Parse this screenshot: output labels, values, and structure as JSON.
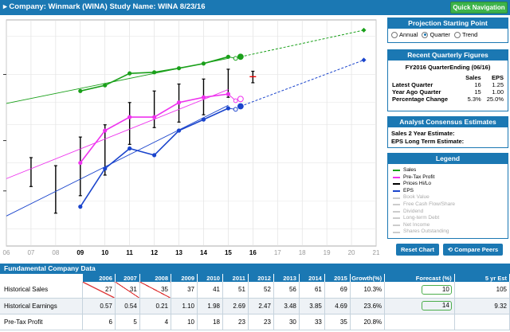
{
  "header": {
    "title": "▸ Company: Winmark (WINA)   Study Name: WINA 8/23/16",
    "quick_nav_label": "Quick Navigation"
  },
  "projection": {
    "title": "Projection Starting Point",
    "options": [
      "Annual",
      "Quarter",
      "Trend"
    ],
    "selected": "Quarter"
  },
  "recent_quarterly": {
    "title": "Recent Quarterly Figures",
    "subtitle": "FY2016 QuarterEnding (06/16)",
    "col_sales": "Sales",
    "col_eps": "EPS",
    "rows": [
      {
        "label": "Latest Quarter",
        "sales": "16",
        "eps": "1.25"
      },
      {
        "label": "Year Ago Quarter",
        "sales": "15",
        "eps": "1.00"
      },
      {
        "label": "Percentage Change",
        "sales": "5.3%",
        "eps": "25.0%"
      }
    ]
  },
  "analyst": {
    "title": "Analyst Consensus Estimates",
    "line1": "Sales 2 Year Estimate:",
    "line2": "EPS Long Term Estimate:"
  },
  "legend": {
    "title": "Legend",
    "items": [
      {
        "label": "Sales",
        "color": "#1aa01a",
        "active": true
      },
      {
        "label": "Pre-Tax Profit",
        "color": "#ee33ee",
        "active": true
      },
      {
        "label": "Prices Hi/Lo",
        "color": "#000000",
        "active": true
      },
      {
        "label": "EPS",
        "color": "#1a44cc",
        "active": true
      },
      {
        "label": "Book Value",
        "color": "#cccccc",
        "active": false
      },
      {
        "label": "Free Cash Flow/Share",
        "color": "#cccccc",
        "active": false
      },
      {
        "label": "Dividend",
        "color": "#cccccc",
        "active": false
      },
      {
        "label": "Long-term Debt",
        "color": "#cccccc",
        "active": false
      },
      {
        "label": "Net Income",
        "color": "#cccccc",
        "active": false
      },
      {
        "label": "Shares Outstanding",
        "color": "#cccccc",
        "active": false
      }
    ]
  },
  "buttons": {
    "reset": "Reset Chart",
    "compare": "⟲ Compare Peers"
  },
  "fundamental": {
    "title": "Fundamental Company Data",
    "headers": [
      "",
      "2006",
      "2007",
      "2008",
      "2009",
      "2010",
      "2011",
      "2012",
      "2013",
      "2014",
      "2015",
      "Growth(%)",
      "Forecast (%)",
      "5 yr Est"
    ],
    "rows": [
      {
        "label": "Historical Sales",
        "values": [
          "27",
          "31",
          "35",
          "37",
          "41",
          "51",
          "52",
          "56",
          "61",
          "69"
        ],
        "growth": "10.3%",
        "forecast": "10",
        "est": "105"
      },
      {
        "label": "Historical Earnings",
        "values": [
          "0.57",
          "0.54",
          "0.21",
          "1.10",
          "1.98",
          "2.69",
          "2.47",
          "3.48",
          "3.85",
          "4.69"
        ],
        "growth": "23.6%",
        "forecast": "14",
        "est": "9.32"
      },
      {
        "label": "Pre-Tax Profit",
        "values": [
          "6",
          "5",
          "4",
          "10",
          "18",
          "23",
          "23",
          "30",
          "33",
          "35"
        ],
        "growth": "20.8%",
        "forecast": "",
        "est": ""
      }
    ],
    "struck_columns": [
      0,
      1,
      2
    ]
  },
  "chart_data": {
    "type": "line",
    "x_ticks": [
      "06",
      "07",
      "08",
      "09",
      "10",
      "11",
      "12",
      "13",
      "14",
      "15",
      "16",
      "17",
      "18",
      "19",
      "20",
      "21"
    ],
    "x_range": [
      2006,
      2021
    ],
    "log_scale": true,
    "grid": true,
    "series": [
      {
        "name": "Sales",
        "color": "#1aa01a",
        "x": [
          2009,
          2010,
          2011,
          2012,
          2013,
          2014,
          2015
        ],
        "y": [
          37,
          41,
          51,
          52,
          56,
          61,
          69
        ],
        "trend": {
          "x": [
            2006,
            2015
          ],
          "y": [
            29.5,
            67
          ]
        },
        "projection": {
          "x": [
            2015.5,
            2020.5
          ],
          "y": [
            69,
            112
          ]
        },
        "recent": [
          {
            "x": 2015.3,
            "y": 67
          },
          {
            "x": 2015.5,
            "y": 69
          }
        ]
      },
      {
        "name": "Pre-Tax Profit",
        "color": "#ee33ee",
        "x": [
          2009,
          2010,
          2011,
          2012,
          2013,
          2014,
          2015
        ],
        "y": [
          10,
          18,
          23,
          23,
          30,
          33,
          35
        ],
        "trend": {
          "x": [
            2006,
            2015
          ],
          "y": [
            7.5,
            38
          ]
        },
        "recent": [
          {
            "x": 2015.3,
            "y": 31
          },
          {
            "x": 2015.5,
            "y": 32
          }
        ]
      },
      {
        "name": "EPS",
        "color": "#1a44cc",
        "x": [
          2009,
          2010,
          2011,
          2012,
          2013,
          2014,
          2015
        ],
        "y": [
          4.5,
          9,
          13,
          11.5,
          18,
          22,
          27
        ],
        "trend": {
          "x": [
            2006,
            2015
          ],
          "y": [
            3.8,
            28.5
          ]
        },
        "projection": {
          "x": [
            2015.5,
            2020.5
          ],
          "y": [
            28,
            65
          ]
        },
        "recent": [
          {
            "x": 2015.3,
            "y": 26.5
          },
          {
            "x": 2015.5,
            "y": 28
          }
        ]
      }
    ],
    "price_hilo": [
      {
        "x": 2007,
        "lo": 6.5,
        "hi": 11
      },
      {
        "x": 2008,
        "lo": 4,
        "hi": 9.5
      },
      {
        "x": 2009,
        "lo": 5.5,
        "hi": 16
      },
      {
        "x": 2010,
        "lo": 8,
        "hi": 20
      },
      {
        "x": 2011,
        "lo": 14,
        "hi": 30
      },
      {
        "x": 2012,
        "lo": 19,
        "hi": 37
      },
      {
        "x": 2013,
        "lo": 21,
        "hi": 42
      },
      {
        "x": 2014,
        "lo": 24,
        "hi": 46
      },
      {
        "x": 2015,
        "lo": 33,
        "hi": 55
      },
      {
        "x": 2016,
        "lo": 43,
        "hi": 53
      }
    ],
    "current_price": {
      "x": 2016,
      "y": 48
    }
  }
}
